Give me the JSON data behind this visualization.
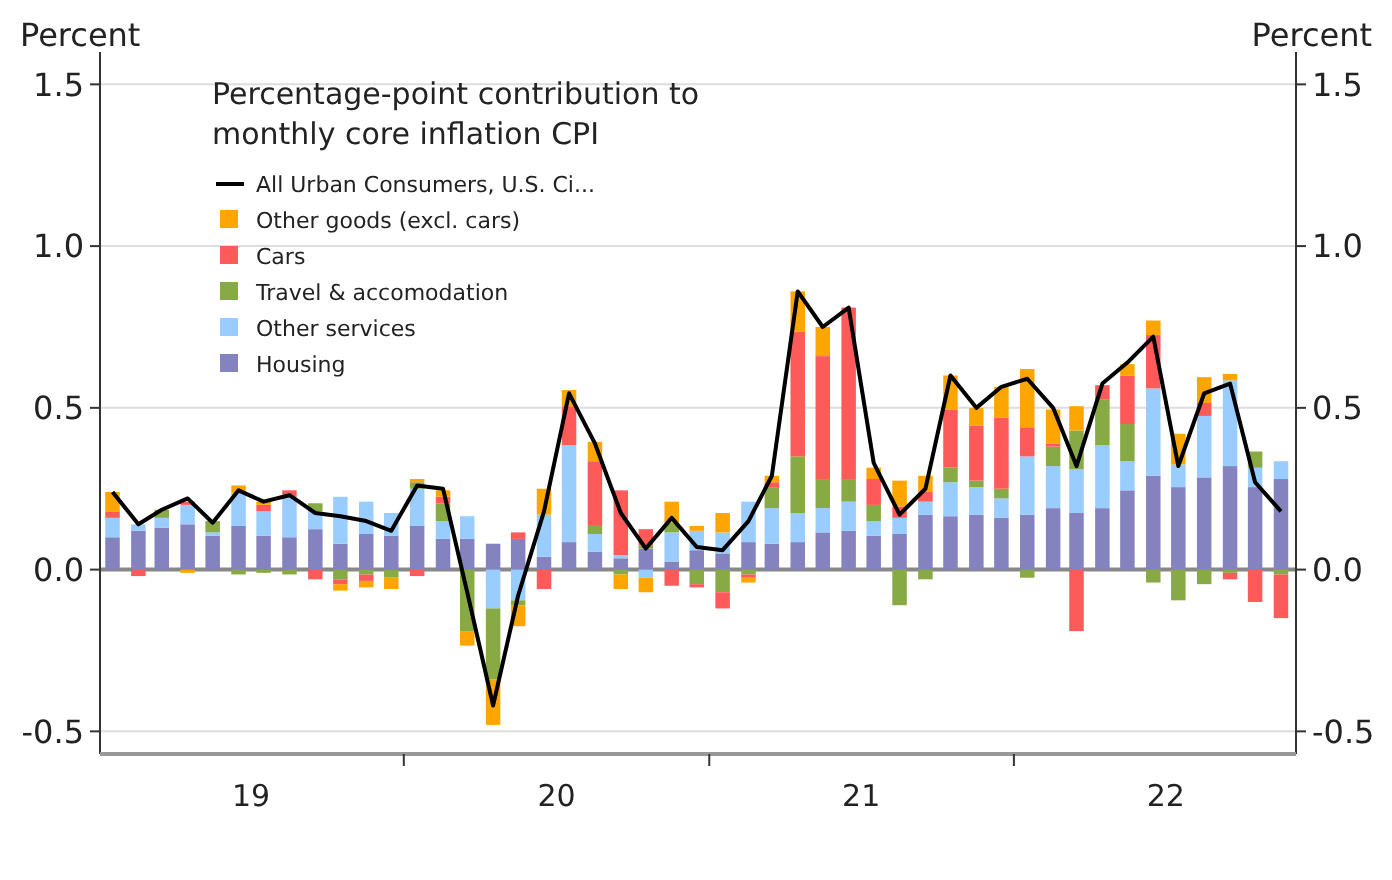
{
  "chart_data": {
    "type": "bar",
    "stacked": true,
    "legend_title": "Percentage-point contribution to monthly core inflation CPI",
    "ylabel": "Percent",
    "y2label": "Percent",
    "x": [
      "2019-01",
      "2019-02",
      "2019-03",
      "2019-04",
      "2019-05",
      "2019-06",
      "2019-07",
      "2019-08",
      "2019-09",
      "2019-10",
      "2019-11",
      "2019-12",
      "2020-01",
      "2020-02",
      "2020-03",
      "2020-04",
      "2020-05",
      "2020-06",
      "2020-07",
      "2020-08",
      "2020-09",
      "2020-10",
      "2020-11",
      "2020-12",
      "2021-01",
      "2021-02",
      "2021-03",
      "2021-04",
      "2021-05",
      "2021-06",
      "2021-07",
      "2021-08",
      "2021-09",
      "2021-10",
      "2021-11",
      "2021-12",
      "2022-01",
      "2022-02",
      "2022-03",
      "2022-04",
      "2022-05",
      "2022-06",
      "2022-07",
      "2022-08",
      "2022-09",
      "2022-10",
      "2022-11"
    ],
    "xlim": [
      "2018-12-17",
      "2022-11-19"
    ],
    "xticks": [
      {
        "value": "2019-06-16",
        "label": "19"
      },
      {
        "value": "2019-12-16",
        "label": null
      },
      {
        "value": "2020-06-16",
        "label": "20"
      },
      {
        "value": "2020-12-16",
        "label": null
      },
      {
        "value": "2021-06-16",
        "label": "21"
      },
      {
        "value": "2021-12-16",
        "label": null
      },
      {
        "value": "2022-06-16",
        "label": "22"
      }
    ],
    "ylim": [
      -0.57,
      1.6
    ],
    "yticks": [
      -0.5,
      {
        "value": 0,
        "label": "0.0"
      },
      0.5,
      {
        "value": 1,
        "label": "1.0"
      },
      1.5
    ],
    "y2lim": [
      -0.57,
      1.6
    ],
    "y2ticks": [
      -0.5,
      {
        "value": 0,
        "label": "0.0"
      },
      0.5,
      {
        "value": 1,
        "label": "1.0"
      },
      1.5
    ],
    "grid": "y",
    "legend": "top left",
    "series": [
      {
        "name": "All Urban Consumers, U.S. Ci...",
        "type": "line",
        "color": "#000000",
        "marker": "none",
        "line_style": "solid",
        "values": [
          0.24,
          0.14,
          0.185,
          0.22,
          0.145,
          0.245,
          0.21,
          0.23,
          0.175,
          0.165,
          0.15,
          0.12,
          0.26,
          0.25,
          -0.07,
          -0.42,
          -0.08,
          0.18,
          0.545,
          0.39,
          0.175,
          0.065,
          0.16,
          0.07,
          0.06,
          0.15,
          0.29,
          0.86,
          0.75,
          0.81,
          0.33,
          0.17,
          0.25,
          0.6,
          0.5,
          0.565,
          0.59,
          0.5,
          0.32,
          0.575,
          0.64,
          0.72,
          0.32,
          0.545,
          0.575,
          0.27,
          0.18
        ]
      },
      {
        "name": "Housing",
        "color": "#8482bf",
        "values": [
          0.1,
          0.12,
          0.13,
          0.14,
          0.105,
          0.135,
          0.105,
          0.1,
          0.125,
          0.08,
          0.11,
          0.105,
          0.135,
          0.095,
          0.095,
          0.08,
          0.095,
          0.04,
          0.085,
          0.055,
          0.035,
          0.065,
          0.025,
          0.06,
          0.05,
          0.085,
          0.08,
          0.085,
          0.115,
          0.12,
          0.105,
          0.11,
          0.17,
          0.165,
          0.17,
          0.16,
          0.17,
          0.19,
          0.175,
          0.19,
          0.245,
          0.29,
          0.255,
          0.285,
          0.32,
          0.255,
          0.28
        ]
      },
      {
        "name": "Other services",
        "color": "#99ccff",
        "values": [
          0.06,
          0.02,
          0.03,
          0.06,
          0.01,
          0.1,
          0.075,
          0.125,
          0.055,
          0.145,
          0.1,
          0.07,
          0.115,
          0.055,
          0.07,
          -0.12,
          -0.095,
          0.13,
          0.3,
          0.055,
          0.01,
          -0.025,
          0.09,
          0.06,
          0.065,
          0.125,
          0.11,
          0.09,
          0.075,
          0.09,
          0.045,
          0.05,
          0.04,
          0.105,
          0.085,
          0.06,
          0.18,
          0.13,
          0.135,
          0.195,
          0.09,
          0.27,
          0.07,
          0.19,
          0.265,
          0.06,
          0.055
        ]
      },
      {
        "name": "Travel & accomodation",
        "color": "#88aa44",
        "values": [
          0,
          null,
          0.025,
          null,
          0.035,
          -0.015,
          -0.01,
          -0.015,
          0.025,
          -0.03,
          -0.015,
          -0.025,
          0.02,
          0.055,
          -0.19,
          -0.22,
          -0.015,
          0,
          0,
          0.025,
          -0.015,
          0.01,
          0.03,
          -0.045,
          -0.07,
          -0.015,
          0.065,
          0.175,
          0.09,
          0.07,
          0.05,
          -0.11,
          -0.03,
          0.045,
          0.02,
          0.03,
          -0.025,
          0.06,
          0.12,
          0.14,
          0.115,
          -0.04,
          -0.095,
          -0.045,
          -0.01,
          0.05,
          -0.015
        ]
      },
      {
        "name": "Cars",
        "color": "#ff5a5a",
        "values": [
          0.02,
          -0.02,
          0,
          0.01,
          0,
          0,
          0.02,
          0.02,
          -0.03,
          -0.015,
          -0.02,
          0,
          -0.02,
          0.02,
          0,
          null,
          0.02,
          -0.06,
          0.12,
          0.2,
          0.2,
          0.05,
          -0.05,
          -0.01,
          -0.05,
          -0.01,
          0.015,
          0.385,
          0.38,
          0.53,
          0.08,
          0.035,
          0.03,
          0.18,
          0.17,
          0.22,
          0.09,
          0.01,
          -0.19,
          0.045,
          0.15,
          0.165,
          0,
          0.04,
          -0.02,
          -0.1,
          -0.135
        ]
      },
      {
        "name": "Other goods (excl. cars)",
        "color": "#ffa500",
        "values": [
          0.06,
          0,
          0,
          -0.01,
          0,
          0.025,
          0.01,
          0,
          0,
          -0.02,
          -0.02,
          -0.035,
          0.01,
          0.02,
          -0.045,
          -0.14,
          -0.065,
          0.08,
          0.05,
          0.06,
          -0.045,
          -0.045,
          0.065,
          0.015,
          0.06,
          -0.015,
          0.02,
          0.125,
          0.09,
          0,
          0.035,
          0.08,
          0.05,
          0.105,
          0.055,
          0.095,
          0.18,
          0.105,
          0.075,
          0,
          0.035,
          0.045,
          0.095,
          0.08,
          0.02,
          0,
          0
        ]
      }
    ]
  }
}
